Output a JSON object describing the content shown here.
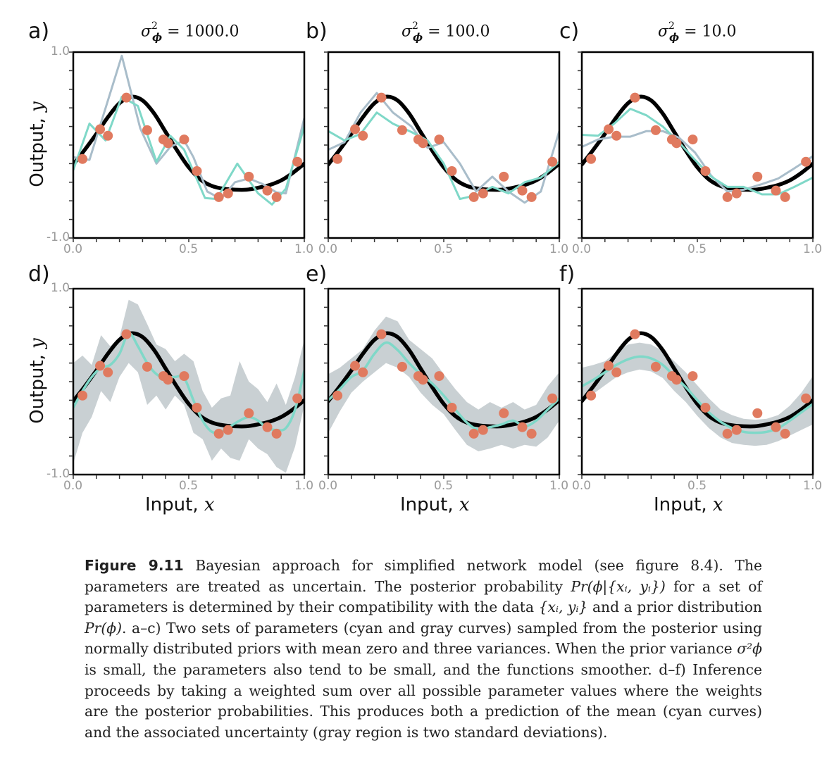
{
  "figure": {
    "label": "Figure 9.11",
    "caption_runs": [
      {
        "t": "text",
        "v": " Bayesian approach for simplified network model (see figure 8.4). The parameters are treated as uncertain. The posterior probability "
      },
      {
        "t": "math",
        "v": "Pr(ϕ|{xᵢ, yᵢ})"
      },
      {
        "t": "text",
        "v": " for a set of parameters is determined by their compatibility with the data "
      },
      {
        "t": "math",
        "v": "{xᵢ, yᵢ}"
      },
      {
        "t": "text",
        "v": " and a prior distribution "
      },
      {
        "t": "math",
        "v": "Pr(ϕ)"
      },
      {
        "t": "text",
        "v": ". a–c) Two sets of parameters (cyan and gray curves) sampled from the posterior using normally distributed priors with mean zero and three variances. When the prior variance "
      },
      {
        "t": "math",
        "v": "σ²ϕ"
      },
      {
        "t": "text",
        "v": " is small, the parameters also tend to be small, and the functions smoother. d–f) Inference proceeds by taking a weighted sum over all possible parameter values where the weights are the posterior probabilities. This produces both a prediction of the mean (cyan curves) and the associated uncertainty (gray region is two standard deviations)."
      }
    ]
  },
  "colors": {
    "true_function": "#000000",
    "data_points": "#E07A5F",
    "sample_cyan": "#7FD8C8",
    "sample_gray": "#A9BDCA",
    "uncertainty_band": "#C9D0D3",
    "axis": "#000000",
    "tick_label": "#9a9a9a"
  },
  "axis_text": {
    "ylabel_text": "Output, ",
    "ylabel_var": "y",
    "xlabel_text": "Input, ",
    "xlabel_var": "x",
    "x_ticks": [
      "0.0",
      "0.5",
      "1.0"
    ],
    "y_ticks": [
      "1.0",
      "-1.0"
    ]
  },
  "chart_data": [
    {
      "id": "a",
      "type": "line",
      "letter": "a)",
      "title_prefix": "σ",
      "title_sup": "2",
      "title_sub": "ϕ",
      "title_value": " = 1000.0",
      "xlim": [
        0,
        1
      ],
      "ylim": [
        -1,
        1
      ],
      "x_ticks": [
        0.0,
        0.5,
        1.0
      ],
      "y_ticks": [
        1.0,
        -1.0
      ],
      "minor_y_step": 0.2,
      "minor_x_step": 0.1,
      "data_points": {
        "x": [
          0.04,
          0.116,
          0.15,
          0.23,
          0.32,
          0.39,
          0.41,
          0.48,
          0.535,
          0.63,
          0.67,
          0.76,
          0.84,
          0.88,
          0.97
        ],
        "y": [
          -0.15,
          0.17,
          0.1,
          0.51,
          0.16,
          0.06,
          0.02,
          0.06,
          -0.28,
          -0.56,
          -0.52,
          -0.34,
          -0.49,
          -0.56,
          -0.18
        ]
      },
      "series": [
        {
          "name": "sample-gray",
          "x": [
            0,
            0.07,
            0.21,
            0.29,
            0.36,
            0.42,
            0.48,
            0.52,
            0.58,
            0.64,
            0.7,
            0.76,
            0.82,
            0.88,
            0.92,
            1.0
          ],
          "y": [
            -0.13,
            -0.16,
            0.96,
            0.18,
            -0.2,
            -0.02,
            0.05,
            -0.13,
            -0.5,
            -0.58,
            -0.4,
            -0.36,
            -0.42,
            -0.51,
            -0.52,
            0.29
          ]
        },
        {
          "name": "sample-cyan",
          "x": [
            0,
            0.07,
            0.14,
            0.21,
            0.28,
            0.36,
            0.42,
            0.48,
            0.57,
            0.62,
            0.71,
            0.8,
            0.86,
            0.92,
            1.0
          ],
          "y": [
            -0.27,
            0.23,
            0.05,
            0.52,
            0.42,
            -0.18,
            0.1,
            -0.05,
            -0.57,
            -0.58,
            -0.2,
            -0.52,
            -0.64,
            -0.47,
            0.2
          ]
        }
      ]
    },
    {
      "id": "b",
      "type": "line",
      "letter": "b)",
      "title_prefix": "σ",
      "title_sup": "2",
      "title_sub": "ϕ",
      "title_value": " = 100.0",
      "xlim": [
        0,
        1
      ],
      "ylim": [
        -1,
        1
      ],
      "x_ticks": [
        0.0,
        0.5,
        1.0
      ],
      "y_ticks": [],
      "minor_y_step": 0.2,
      "minor_x_step": 0.1,
      "data_points": {
        "x": [
          0.04,
          0.116,
          0.15,
          0.23,
          0.32,
          0.39,
          0.41,
          0.48,
          0.535,
          0.63,
          0.67,
          0.76,
          0.84,
          0.88,
          0.97
        ],
        "y": [
          -0.15,
          0.17,
          0.1,
          0.51,
          0.16,
          0.06,
          0.02,
          0.06,
          -0.28,
          -0.56,
          -0.52,
          -0.34,
          -0.49,
          -0.56,
          -0.18
        ]
      },
      "series": [
        {
          "name": "sample-gray",
          "x": [
            0,
            0.07,
            0.14,
            0.21,
            0.28,
            0.36,
            0.43,
            0.5,
            0.57,
            0.64,
            0.71,
            0.78,
            0.85,
            0.92,
            1.0
          ],
          "y": [
            -0.05,
            0.03,
            0.35,
            0.56,
            0.35,
            0.2,
            -0.03,
            0.03,
            -0.2,
            -0.5,
            -0.34,
            -0.5,
            -0.62,
            -0.5,
            0.15
          ]
        },
        {
          "name": "sample-cyan",
          "x": [
            0,
            0.07,
            0.14,
            0.21,
            0.28,
            0.36,
            0.43,
            0.5,
            0.57,
            0.64,
            0.71,
            0.78,
            0.85,
            0.92,
            1.0
          ],
          "y": [
            0.15,
            0.05,
            0.12,
            0.35,
            0.23,
            0.14,
            0.05,
            -0.2,
            -0.58,
            -0.54,
            -0.45,
            -0.52,
            -0.4,
            -0.35,
            -0.18
          ]
        }
      ]
    },
    {
      "id": "c",
      "type": "line",
      "letter": "c)",
      "title_prefix": "σ",
      "title_sup": "2",
      "title_sub": "ϕ",
      "title_value": " = 10.0",
      "xlim": [
        0,
        1
      ],
      "ylim": [
        -1,
        1
      ],
      "x_ticks": [
        0.0,
        0.5,
        1.0
      ],
      "y_ticks": [],
      "minor_y_step": 0.2,
      "minor_x_step": 0.1,
      "data_points": {
        "x": [
          0.04,
          0.116,
          0.15,
          0.23,
          0.32,
          0.39,
          0.41,
          0.48,
          0.535,
          0.63,
          0.67,
          0.76,
          0.84,
          0.88,
          0.97
        ],
        "y": [
          -0.15,
          0.17,
          0.1,
          0.51,
          0.16,
          0.06,
          0.02,
          0.06,
          -0.28,
          -0.56,
          -0.52,
          -0.34,
          -0.49,
          -0.56,
          -0.18
        ]
      },
      "series": [
        {
          "name": "sample-gray",
          "x": [
            0,
            0.07,
            0.14,
            0.21,
            0.28,
            0.35,
            0.42,
            0.49,
            0.56,
            0.63,
            0.7,
            0.78,
            0.85,
            0.92,
            1.0
          ],
          "y": [
            -0.02,
            0.06,
            0.09,
            0.09,
            0.15,
            0.15,
            0.08,
            -0.08,
            -0.33,
            -0.5,
            -0.48,
            -0.42,
            -0.36,
            -0.25,
            -0.12
          ]
        },
        {
          "name": "sample-cyan",
          "x": [
            0,
            0.07,
            0.14,
            0.21,
            0.28,
            0.35,
            0.42,
            0.49,
            0.56,
            0.63,
            0.7,
            0.78,
            0.85,
            0.92,
            1.0
          ],
          "y": [
            0.11,
            0.1,
            0.23,
            0.39,
            0.32,
            0.2,
            0.03,
            -0.16,
            -0.34,
            -0.45,
            -0.45,
            -0.53,
            -0.53,
            -0.45,
            -0.35
          ]
        }
      ]
    },
    {
      "id": "d",
      "type": "area",
      "letter": "d)",
      "xlim": [
        0,
        1
      ],
      "ylim": [
        -1,
        1
      ],
      "x_ticks": [
        0.0,
        0.5,
        1.0
      ],
      "y_ticks": [
        1.0,
        -1.0
      ],
      "minor_y_step": 0.2,
      "minor_x_step": 0.1,
      "data_points": {
        "x": [
          0.04,
          0.116,
          0.15,
          0.23,
          0.32,
          0.39,
          0.41,
          0.48,
          0.535,
          0.63,
          0.67,
          0.76,
          0.84,
          0.88,
          0.97
        ],
        "y": [
          -0.15,
          0.17,
          0.1,
          0.51,
          0.16,
          0.06,
          0.02,
          0.06,
          -0.28,
          -0.56,
          -0.52,
          -0.34,
          -0.49,
          -0.56,
          -0.18
        ]
      },
      "mean": {
        "x": [
          0,
          0.04,
          0.08,
          0.12,
          0.16,
          0.2,
          0.24,
          0.28,
          0.32,
          0.36,
          0.4,
          0.44,
          0.48,
          0.52,
          0.56,
          0.6,
          0.64,
          0.68,
          0.72,
          0.76,
          0.8,
          0.84,
          0.88,
          0.92,
          0.96,
          1.0
        ],
        "y": [
          -0.28,
          -0.1,
          0.05,
          0.15,
          0.18,
          0.3,
          0.52,
          0.38,
          0.2,
          0.08,
          0.04,
          0.05,
          0.04,
          -0.2,
          -0.42,
          -0.54,
          -0.54,
          -0.48,
          -0.42,
          -0.38,
          -0.42,
          -0.5,
          -0.52,
          -0.5,
          -0.3,
          0.12
        ]
      },
      "band_upper": [
        0.2,
        0.28,
        0.18,
        0.5,
        0.38,
        0.48,
        0.88,
        0.83,
        0.62,
        0.4,
        0.35,
        0.22,
        0.3,
        0.22,
        -0.1,
        -0.28,
        -0.18,
        -0.15,
        0.22,
        0.0,
        -0.08,
        -0.22,
        -0.02,
        -0.25,
        0.05,
        0.45
      ],
      "band_lower": [
        -0.88,
        -0.55,
        -0.38,
        -0.1,
        -0.22,
        0.05,
        0.2,
        0.1,
        -0.25,
        -0.15,
        -0.3,
        -0.15,
        -0.25,
        -0.55,
        -0.62,
        -0.85,
        -0.72,
        -0.82,
        -0.85,
        -0.62,
        -0.72,
        -0.78,
        -0.92,
        -0.98,
        -0.7,
        -0.25
      ]
    },
    {
      "id": "e",
      "type": "area",
      "letter": "e)",
      "xlim": [
        0,
        1
      ],
      "ylim": [
        -1,
        1
      ],
      "x_ticks": [
        0.0,
        0.5,
        1.0
      ],
      "y_ticks": [],
      "minor_y_step": 0.2,
      "minor_x_step": 0.1,
      "data_points": {
        "x": [
          0.04,
          0.116,
          0.15,
          0.23,
          0.32,
          0.39,
          0.41,
          0.48,
          0.535,
          0.63,
          0.67,
          0.76,
          0.84,
          0.88,
          0.97
        ],
        "y": [
          -0.15,
          0.17,
          0.1,
          0.51,
          0.16,
          0.06,
          0.02,
          0.06,
          -0.28,
          -0.56,
          -0.52,
          -0.34,
          -0.49,
          -0.56,
          -0.18
        ]
      },
      "mean": {
        "x": [
          0,
          0.05,
          0.1,
          0.15,
          0.2,
          0.25,
          0.3,
          0.35,
          0.4,
          0.45,
          0.5,
          0.55,
          0.6,
          0.65,
          0.7,
          0.75,
          0.8,
          0.85,
          0.9,
          0.95,
          1.0
        ],
        "y": [
          -0.2,
          -0.08,
          0.05,
          0.12,
          0.3,
          0.42,
          0.34,
          0.2,
          0.08,
          -0.02,
          -0.15,
          -0.3,
          -0.44,
          -0.52,
          -0.49,
          -0.46,
          -0.42,
          -0.48,
          -0.42,
          -0.3,
          -0.18
        ]
      },
      "band_upper": [
        0.08,
        0.15,
        0.25,
        0.35,
        0.55,
        0.7,
        0.65,
        0.45,
        0.35,
        0.25,
        0.08,
        -0.08,
        -0.22,
        -0.3,
        -0.22,
        -0.28,
        -0.22,
        -0.3,
        -0.25,
        -0.05,
        0.1
      ],
      "band_lower": [
        -0.55,
        -0.32,
        -0.12,
        0.0,
        0.1,
        0.2,
        0.15,
        0.05,
        -0.12,
        -0.25,
        -0.35,
        -0.52,
        -0.68,
        -0.75,
        -0.72,
        -0.68,
        -0.72,
        -0.68,
        -0.7,
        -0.6,
        -0.42
      ]
    },
    {
      "id": "f",
      "type": "area",
      "letter": "f)",
      "xlim": [
        0,
        1
      ],
      "ylim": [
        -1,
        1
      ],
      "x_ticks": [
        0.0,
        0.5,
        1.0
      ],
      "y_ticks": [],
      "minor_y_step": 0.2,
      "minor_x_step": 0.1,
      "data_points": {
        "x": [
          0.04,
          0.116,
          0.15,
          0.23,
          0.32,
          0.39,
          0.41,
          0.48,
          0.535,
          0.63,
          0.67,
          0.76,
          0.84,
          0.88,
          0.97
        ],
        "y": [
          -0.15,
          0.17,
          0.1,
          0.51,
          0.16,
          0.06,
          0.02,
          0.06,
          -0.28,
          -0.56,
          -0.52,
          -0.34,
          -0.49,
          -0.56,
          -0.18
        ]
      },
      "mean": {
        "x": [
          0,
          0.05,
          0.1,
          0.15,
          0.2,
          0.25,
          0.3,
          0.35,
          0.4,
          0.45,
          0.5,
          0.55,
          0.6,
          0.65,
          0.7,
          0.75,
          0.8,
          0.85,
          0.9,
          0.95,
          1.0
        ],
        "y": [
          -0.05,
          0.02,
          0.1,
          0.18,
          0.24,
          0.27,
          0.25,
          0.18,
          0.06,
          -0.06,
          -0.2,
          -0.33,
          -0.43,
          -0.5,
          -0.54,
          -0.55,
          -0.54,
          -0.5,
          -0.42,
          -0.33,
          -0.24
        ]
      },
      "band_upper": [
        0.15,
        0.18,
        0.22,
        0.32,
        0.4,
        0.42,
        0.4,
        0.33,
        0.22,
        0.1,
        -0.04,
        -0.18,
        -0.3,
        -0.36,
        -0.4,
        -0.41,
        -0.4,
        -0.36,
        -0.26,
        -0.12,
        0.06
      ],
      "band_lower": [
        -0.23,
        -0.13,
        -0.04,
        0.05,
        0.1,
        0.13,
        0.11,
        0.04,
        -0.1,
        -0.22,
        -0.37,
        -0.5,
        -0.6,
        -0.66,
        -0.68,
        -0.69,
        -0.68,
        -0.64,
        -0.58,
        -0.52,
        -0.46
      ]
    }
  ],
  "true_function": {
    "x": [
      0,
      0.05,
      0.1,
      0.15,
      0.2,
      0.25,
      0.3,
      0.35,
      0.4,
      0.45,
      0.5,
      0.55,
      0.6,
      0.65,
      0.7,
      0.75,
      0.8,
      0.85,
      0.9,
      0.95,
      1.0
    ],
    "y": [
      -0.21,
      -0.05,
      0.12,
      0.3,
      0.45,
      0.52,
      0.48,
      0.34,
      0.14,
      -0.06,
      -0.24,
      -0.37,
      -0.44,
      -0.47,
      -0.48,
      -0.48,
      -0.46,
      -0.43,
      -0.38,
      -0.3,
      -0.2
    ]
  }
}
